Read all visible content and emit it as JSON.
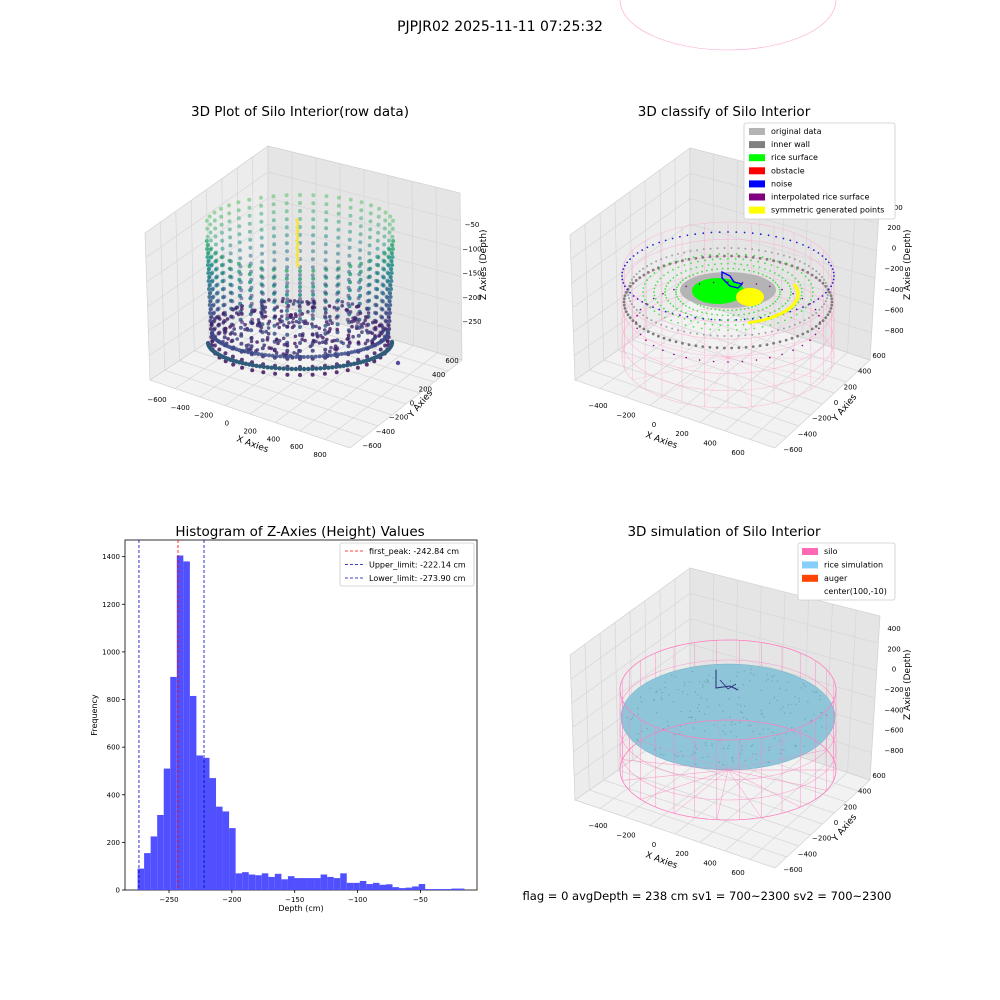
{
  "figure": {
    "suptitle": "PJPJR02 2025-11-11 07:25:32",
    "footer": "flag = 0     avgDepth = 238 cm  sv1 = 700~2300  sv2 = 700~2300"
  },
  "panels": {
    "raw": {
      "title": "3D Plot of Silo Interior(row data)",
      "xlabel": "X Axies",
      "ylabel": "Y Axies",
      "zlabel": "Z Axies (Depth)",
      "xticks": [
        "−600",
        "−400",
        "−200",
        "0",
        "200",
        "400",
        "600",
        "800"
      ],
      "yticks": [
        "−600",
        "−400",
        "−200",
        "0",
        "200",
        "400",
        "600"
      ],
      "zticks": [
        "−50",
        "−100",
        "−150",
        "−200",
        "−250"
      ]
    },
    "classify": {
      "title": "3D classify of Silo Interior",
      "xlabel": "X Axies",
      "ylabel": "Y Axies",
      "zlabel": "Z Axies (Depth)",
      "xticks": [
        "−400",
        "−200",
        "0",
        "200",
        "400",
        "600"
      ],
      "yticks": [
        "−600",
        "−400",
        "−200",
        "0",
        "200",
        "400",
        "600"
      ],
      "zticks": [
        "200",
        "0",
        "−200",
        "−400",
        "−600",
        "−800"
      ],
      "zticks_top": "400",
      "legend": [
        {
          "label": "original data",
          "color": "#b4b4b4"
        },
        {
          "label": "inner wall",
          "color": "#808080"
        },
        {
          "label": "rice surface",
          "color": "#00ff00"
        },
        {
          "label": "obstacle",
          "color": "#ff0000"
        },
        {
          "label": "noise",
          "color": "#0000ff"
        },
        {
          "label": "interpolated rice surface",
          "color": "#800080"
        },
        {
          "label": "symmetric generated points",
          "color": "#ffff00"
        }
      ]
    },
    "simulation": {
      "title": "3D simulation of Silo Interior",
      "xlabel": "X Axies",
      "ylabel": "Y Axies",
      "zlabel": "Z Axies (Depth)",
      "xticks": [
        "−400",
        "−200",
        "0",
        "200",
        "400",
        "600"
      ],
      "yticks": [
        "−600",
        "−400",
        "−200",
        "0",
        "200",
        "400",
        "600"
      ],
      "zticks": [
        "400",
        "200",
        "0",
        "−200",
        "−400",
        "−600",
        "−800"
      ],
      "legend": [
        {
          "label": "silo",
          "color": "#ff69b4"
        },
        {
          "label": "rice simulation",
          "color": "#87cefa"
        },
        {
          "label": "auger",
          "color": "#ff4500"
        },
        {
          "label": "center(100,-10)",
          "color": ""
        }
      ]
    }
  },
  "chart_data": {
    "type": "bar",
    "title": "Histogram of Z-Axies (Height) Values",
    "xlabel": "Depth (cm)",
    "ylabel": "Frequency",
    "xlim": [
      -285,
      -5
    ],
    "ylim": [
      0,
      1470
    ],
    "xticks": [
      -250,
      -200,
      -150,
      -100,
      -50
    ],
    "yticks": [
      0,
      200,
      400,
      600,
      800,
      1000,
      1200,
      1400
    ],
    "bin_width": 5.2,
    "bins": [
      {
        "x": -275.0,
        "count": 90
      },
      {
        "x": -269.8,
        "count": 155
      },
      {
        "x": -264.6,
        "count": 225
      },
      {
        "x": -259.4,
        "count": 315
      },
      {
        "x": -254.2,
        "count": 510
      },
      {
        "x": -249.0,
        "count": 895
      },
      {
        "x": -243.8,
        "count": 1405
      },
      {
        "x": -238.6,
        "count": 1380
      },
      {
        "x": -233.4,
        "count": 815
      },
      {
        "x": -228.2,
        "count": 565
      },
      {
        "x": -223.0,
        "count": 555
      },
      {
        "x": -217.8,
        "count": 470
      },
      {
        "x": -212.6,
        "count": 350
      },
      {
        "x": -207.4,
        "count": 330
      },
      {
        "x": -202.2,
        "count": 260
      },
      {
        "x": -197.0,
        "count": 70
      },
      {
        "x": -191.8,
        "count": 75
      },
      {
        "x": -186.6,
        "count": 65
      },
      {
        "x": -181.4,
        "count": 62
      },
      {
        "x": -176.2,
        "count": 70
      },
      {
        "x": -171.0,
        "count": 55
      },
      {
        "x": -165.8,
        "count": 68
      },
      {
        "x": -160.6,
        "count": 45
      },
      {
        "x": -155.4,
        "count": 58
      },
      {
        "x": -150.2,
        "count": 50
      },
      {
        "x": -145.0,
        "count": 50
      },
      {
        "x": -139.8,
        "count": 50
      },
      {
        "x": -134.6,
        "count": 50
      },
      {
        "x": -129.4,
        "count": 65
      },
      {
        "x": -124.2,
        "count": 55
      },
      {
        "x": -119.0,
        "count": 50
      },
      {
        "x": -113.8,
        "count": 70
      },
      {
        "x": -108.6,
        "count": 30
      },
      {
        "x": -103.4,
        "count": 30
      },
      {
        "x": -98.2,
        "count": 38
      },
      {
        "x": -93.0,
        "count": 25
      },
      {
        "x": -87.8,
        "count": 30
      },
      {
        "x": -82.6,
        "count": 22
      },
      {
        "x": -77.4,
        "count": 24
      },
      {
        "x": -72.2,
        "count": 12
      },
      {
        "x": -67.0,
        "count": 8
      },
      {
        "x": -61.8,
        "count": 10
      },
      {
        "x": -56.6,
        "count": 15
      },
      {
        "x": -51.4,
        "count": 25
      },
      {
        "x": -46.2,
        "count": 4
      },
      {
        "x": -41.0,
        "count": 4
      },
      {
        "x": -35.8,
        "count": 4
      },
      {
        "x": -30.6,
        "count": 4
      },
      {
        "x": -25.4,
        "count": 6
      },
      {
        "x": -20.2,
        "count": 6
      }
    ],
    "bar_color": "#4d4dff",
    "lines": [
      {
        "label": "first_peak: -242.84 cm",
        "x": -242.84,
        "color": "#ff0000"
      },
      {
        "label": "Upper_limit: -222.14 cm",
        "x": -222.14,
        "color": "#0000bb"
      },
      {
        "label": "Lower_limit: -273.90 cm",
        "x": -273.9,
        "color": "#0000bb"
      }
    ],
    "legend_position": "upper right"
  }
}
